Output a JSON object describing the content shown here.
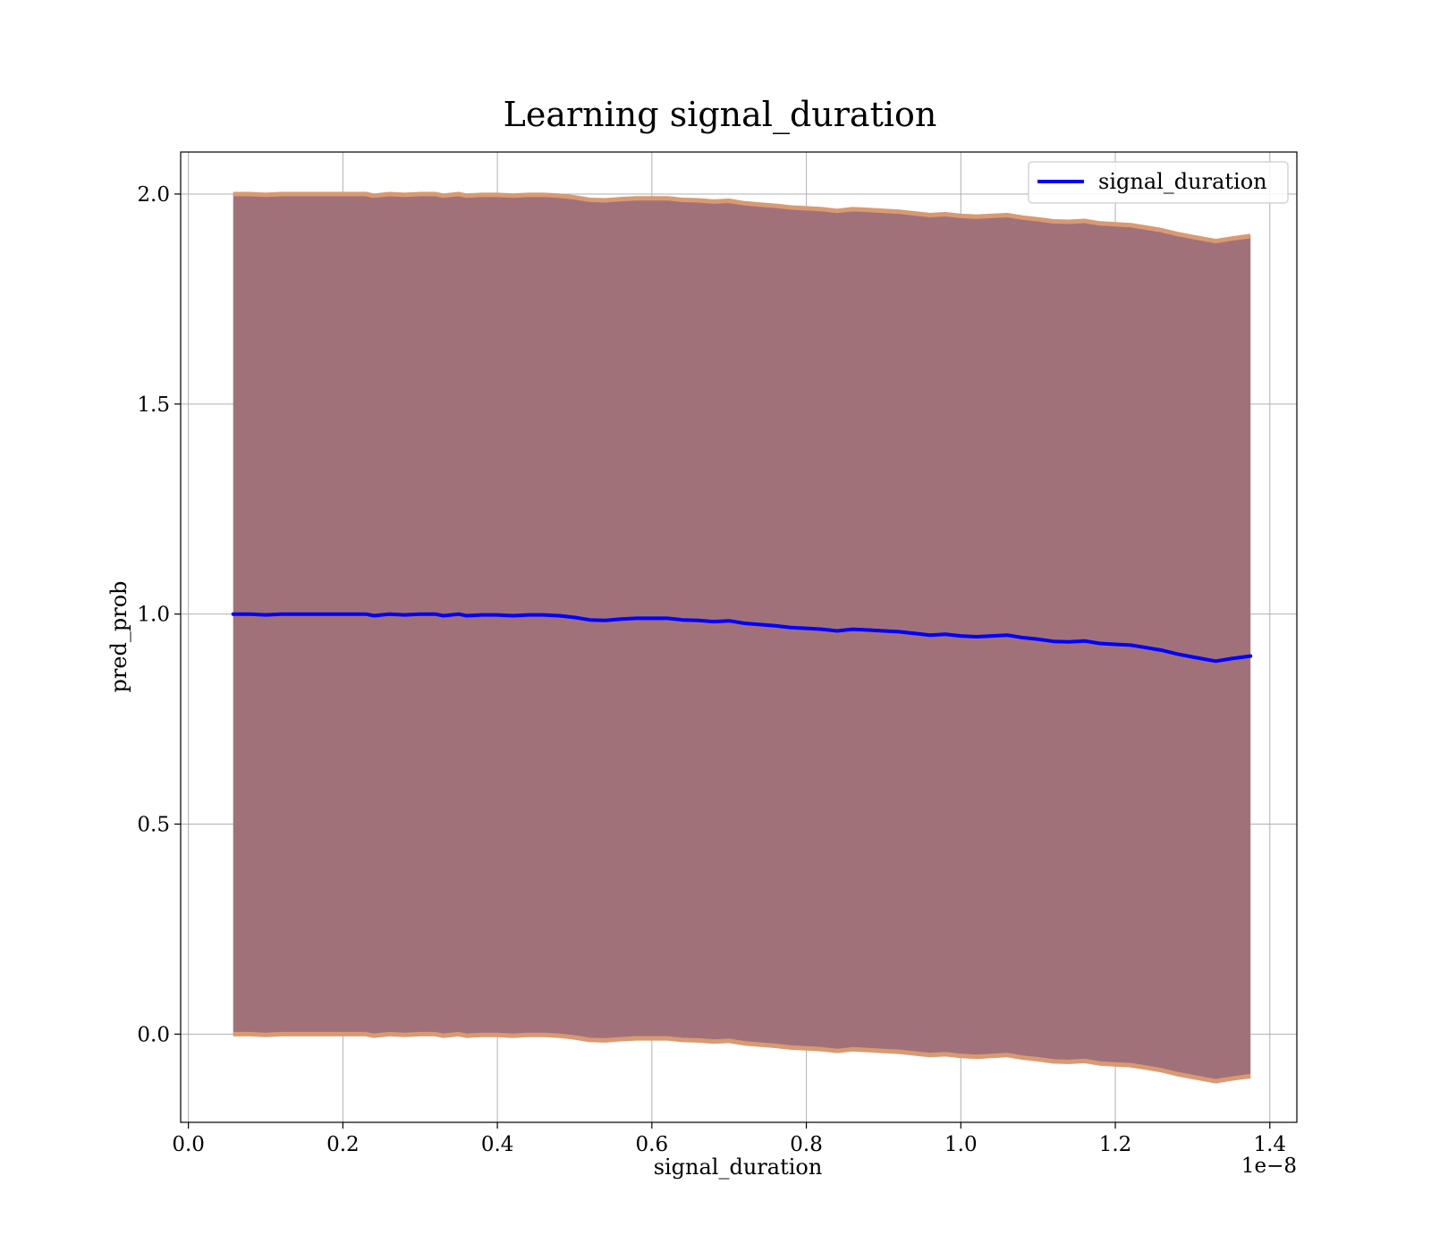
{
  "chart_data": {
    "type": "line",
    "title": "Learning signal_duration",
    "xlabel": "signal_duration",
    "ylabel": "pred_prob",
    "x_offset_label": "1e−8",
    "xlim": [
      -0.01,
      1.435
    ],
    "ylim": [
      -0.21,
      2.1
    ],
    "xticks": [
      0.0,
      0.2,
      0.4,
      0.6,
      0.8,
      1.0,
      1.2,
      1.4
    ],
    "xtick_labels": [
      "0.0",
      "0.2",
      "0.4",
      "0.6",
      "0.8",
      "1.0",
      "1.2",
      "1.4"
    ],
    "yticks": [
      0.0,
      0.5,
      1.0,
      1.5,
      2.0
    ],
    "ytick_labels": [
      "0.0",
      "0.5",
      "1.0",
      "1.5",
      "2.0"
    ],
    "grid": true,
    "legend_position": "top-right",
    "series": [
      {
        "name": "signal_duration",
        "color": "#0000ff",
        "x": [
          0.058,
          0.08,
          0.1,
          0.12,
          0.15,
          0.18,
          0.2,
          0.23,
          0.24,
          0.26,
          0.28,
          0.3,
          0.32,
          0.33,
          0.35,
          0.36,
          0.38,
          0.4,
          0.42,
          0.44,
          0.46,
          0.48,
          0.5,
          0.52,
          0.54,
          0.56,
          0.58,
          0.6,
          0.62,
          0.64,
          0.66,
          0.68,
          0.7,
          0.72,
          0.74,
          0.76,
          0.78,
          0.8,
          0.82,
          0.84,
          0.86,
          0.88,
          0.9,
          0.92,
          0.94,
          0.96,
          0.98,
          1.0,
          1.02,
          1.04,
          1.06,
          1.08,
          1.1,
          1.12,
          1.14,
          1.16,
          1.18,
          1.2,
          1.22,
          1.24,
          1.26,
          1.28,
          1.3,
          1.33,
          1.35,
          1.375
        ],
        "y": [
          1.0,
          1.0,
          0.998,
          1.0,
          1.0,
          1.0,
          1.0,
          1.0,
          0.996,
          1.0,
          0.998,
          1.0,
          1.0,
          0.996,
          1.0,
          0.996,
          0.998,
          0.998,
          0.996,
          0.998,
          0.998,
          0.996,
          0.992,
          0.986,
          0.985,
          0.988,
          0.99,
          0.99,
          0.99,
          0.986,
          0.985,
          0.982,
          0.984,
          0.978,
          0.975,
          0.972,
          0.968,
          0.966,
          0.964,
          0.96,
          0.964,
          0.962,
          0.96,
          0.958,
          0.954,
          0.95,
          0.952,
          0.948,
          0.946,
          0.948,
          0.95,
          0.944,
          0.94,
          0.935,
          0.934,
          0.936,
          0.93,
          0.928,
          0.926,
          0.92,
          0.914,
          0.905,
          0.898,
          0.888,
          0.894,
          0.9
        ]
      }
    ],
    "band": {
      "fill_color": "#a1717a",
      "edge_color": "#d99a72",
      "upper_offset": 1.0,
      "lower_offset": 1.0
    }
  }
}
